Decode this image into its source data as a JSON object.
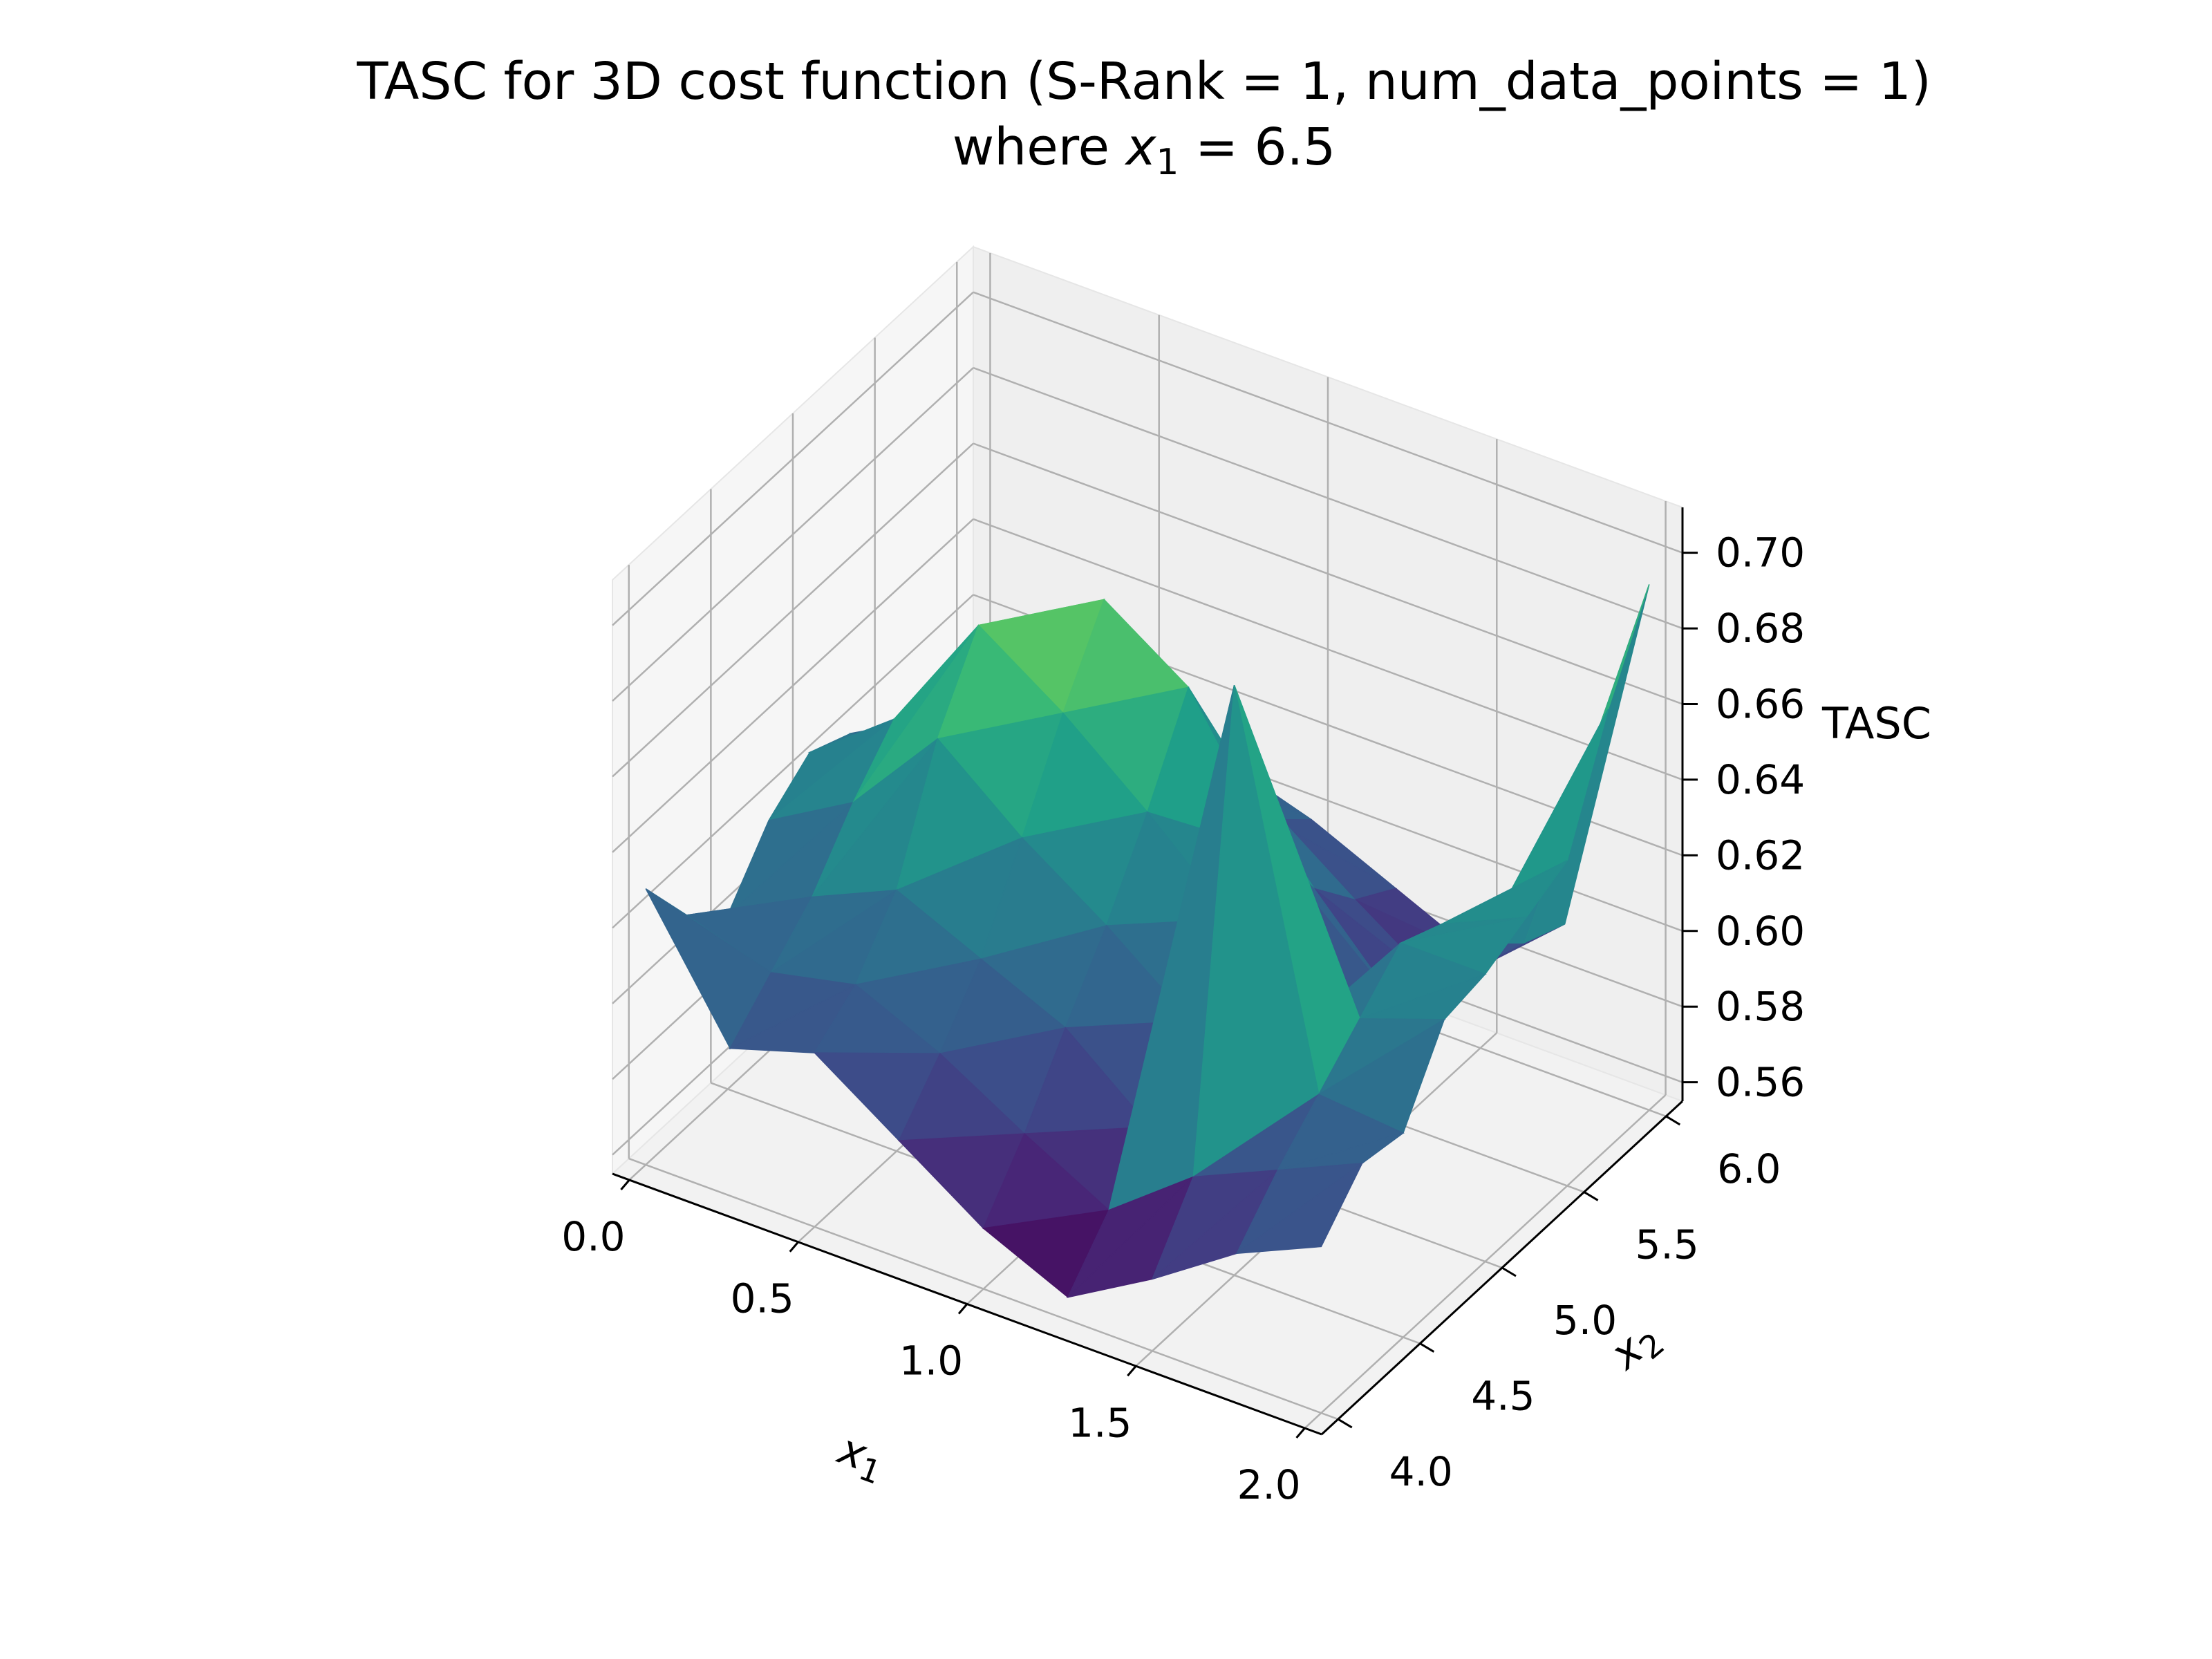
{
  "chart_data": {
    "type": "surface3d",
    "title": "TASC for 3D cost function (S-Rank = 1, num_data_points = 1)",
    "subtitle_prefix": "where ",
    "subtitle_var": "x",
    "subtitle_sub": "1",
    "subtitle_suffix": " = 6.5",
    "xlabel_var": "x",
    "xlabel_sub": "1",
    "ylabel_var": "x",
    "ylabel_sub": "2",
    "zlabel": "TASC",
    "xlim": [
      -0.05,
      2.05
    ],
    "ylim": [
      3.9,
      6.1
    ],
    "zlim": [
      0.555,
      0.712
    ],
    "xticks": [
      "0.0",
      "0.5",
      "1.0",
      "1.5",
      "2.0"
    ],
    "yticks": [
      "4.0",
      "4.5",
      "5.0",
      "5.5",
      "6.0"
    ],
    "zticks": [
      "0.56",
      "0.58",
      "0.60",
      "0.62",
      "0.64",
      "0.66",
      "0.68",
      "0.70"
    ],
    "x": [
      0.0,
      0.25,
      0.5,
      0.75,
      1.0,
      1.25,
      1.5,
      1.75,
      2.0
    ],
    "y": [
      4.0,
      4.25,
      4.5,
      4.75,
      5.0,
      5.25,
      5.5,
      5.75,
      6.0
    ],
    "z": [
      [
        0.628,
        0.611,
        0.601,
        0.616,
        0.624,
        0.619,
        0.611,
        0.604,
        0.614
      ],
      [
        0.594,
        0.604,
        0.614,
        0.629,
        0.641,
        0.619,
        0.606,
        0.599,
        0.609
      ],
      [
        0.601,
        0.609,
        0.624,
        0.654,
        0.674,
        0.641,
        0.621,
        0.609,
        0.601
      ],
      [
        0.586,
        0.599,
        0.614,
        0.636,
        0.659,
        0.679,
        0.649,
        0.616,
        0.606
      ],
      [
        0.571,
        0.586,
        0.604,
        0.621,
        0.641,
        0.664,
        0.634,
        0.609,
        0.599
      ],
      [
        0.561,
        0.574,
        0.586,
        0.604,
        0.621,
        0.629,
        0.609,
        0.596,
        0.589
      ],
      [
        0.574,
        0.591,
        0.711,
        0.604,
        0.596,
        0.591,
        0.586,
        0.581,
        0.579
      ],
      [
        0.589,
        0.601,
        0.611,
        0.621,
        0.631,
        0.626,
        0.611,
        0.601,
        0.596
      ],
      [
        0.599,
        0.611,
        0.609,
        0.629,
        0.631,
        0.636,
        0.641,
        0.671,
        0.694
      ]
    ],
    "colormap": "viridis",
    "pane_color": "#f2f2f2",
    "grid_color": "#b0b0b0",
    "grid": true
  }
}
